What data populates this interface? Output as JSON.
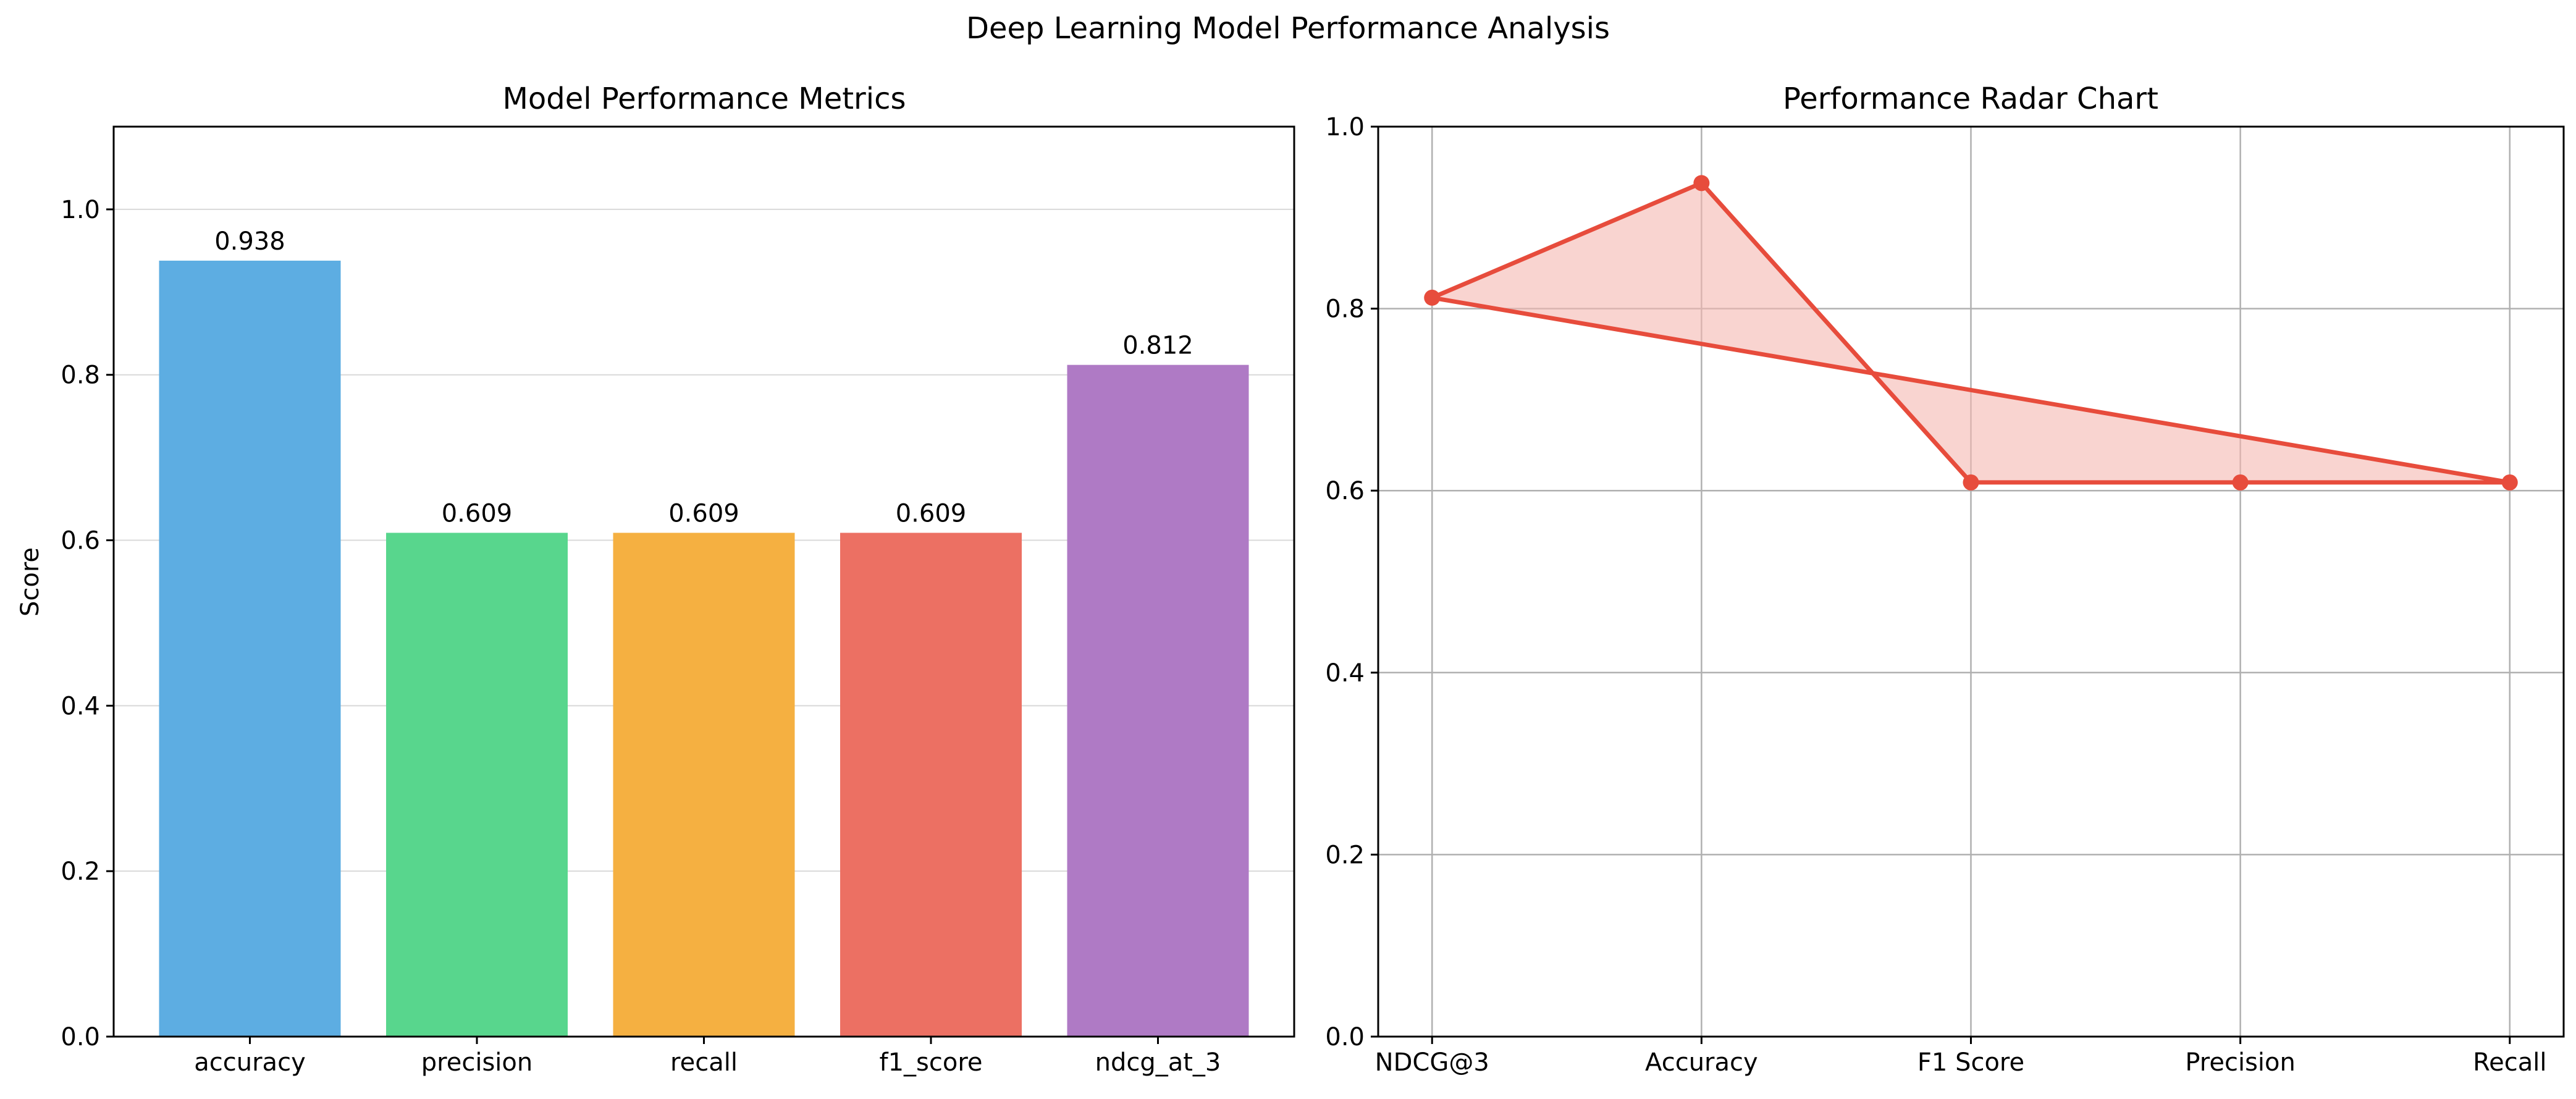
{
  "suptitle": "Deep Learning Model Performance Analysis",
  "chart_data": [
    {
      "type": "bar",
      "title": "Model Performance Metrics",
      "xlabel": "",
      "ylabel": "Score",
      "ylim": [
        0,
        1.1
      ],
      "yticks": [
        0.0,
        0.2,
        0.4,
        0.6,
        0.8,
        1.0
      ],
      "ytick_labels": [
        "0.0",
        "0.2",
        "0.4",
        "0.6",
        "0.8",
        "1.0"
      ],
      "grid": "y",
      "categories": [
        "accuracy",
        "precision",
        "recall",
        "f1_score",
        "ndcg_at_3"
      ],
      "values": [
        0.938,
        0.609,
        0.609,
        0.609,
        0.812
      ],
      "value_labels": [
        "0.938",
        "0.609",
        "0.609",
        "0.609",
        "0.812"
      ],
      "colors": [
        "#5DADE2",
        "#58D68D",
        "#F5B041",
        "#EC7063",
        "#AF7AC5"
      ]
    },
    {
      "type": "line",
      "title": "Performance Radar Chart",
      "xlabel": "",
      "ylabel": "",
      "ylim": [
        0,
        1.0
      ],
      "yticks": [
        0.0,
        0.2,
        0.4,
        0.6,
        0.8,
        1.0
      ],
      "ytick_labels": [
        "0.0",
        "0.2",
        "0.4",
        "0.6",
        "0.8",
        "1.0"
      ],
      "grid": "both",
      "filled": true,
      "closed": true,
      "color": "#E74C3C",
      "fill_color": "#F5B7B1",
      "categories": [
        "NDCG@3",
        "Accuracy",
        "F1 Score",
        "Precision",
        "Recall"
      ],
      "values": [
        0.812,
        0.938,
        0.609,
        0.609,
        0.609
      ]
    }
  ]
}
